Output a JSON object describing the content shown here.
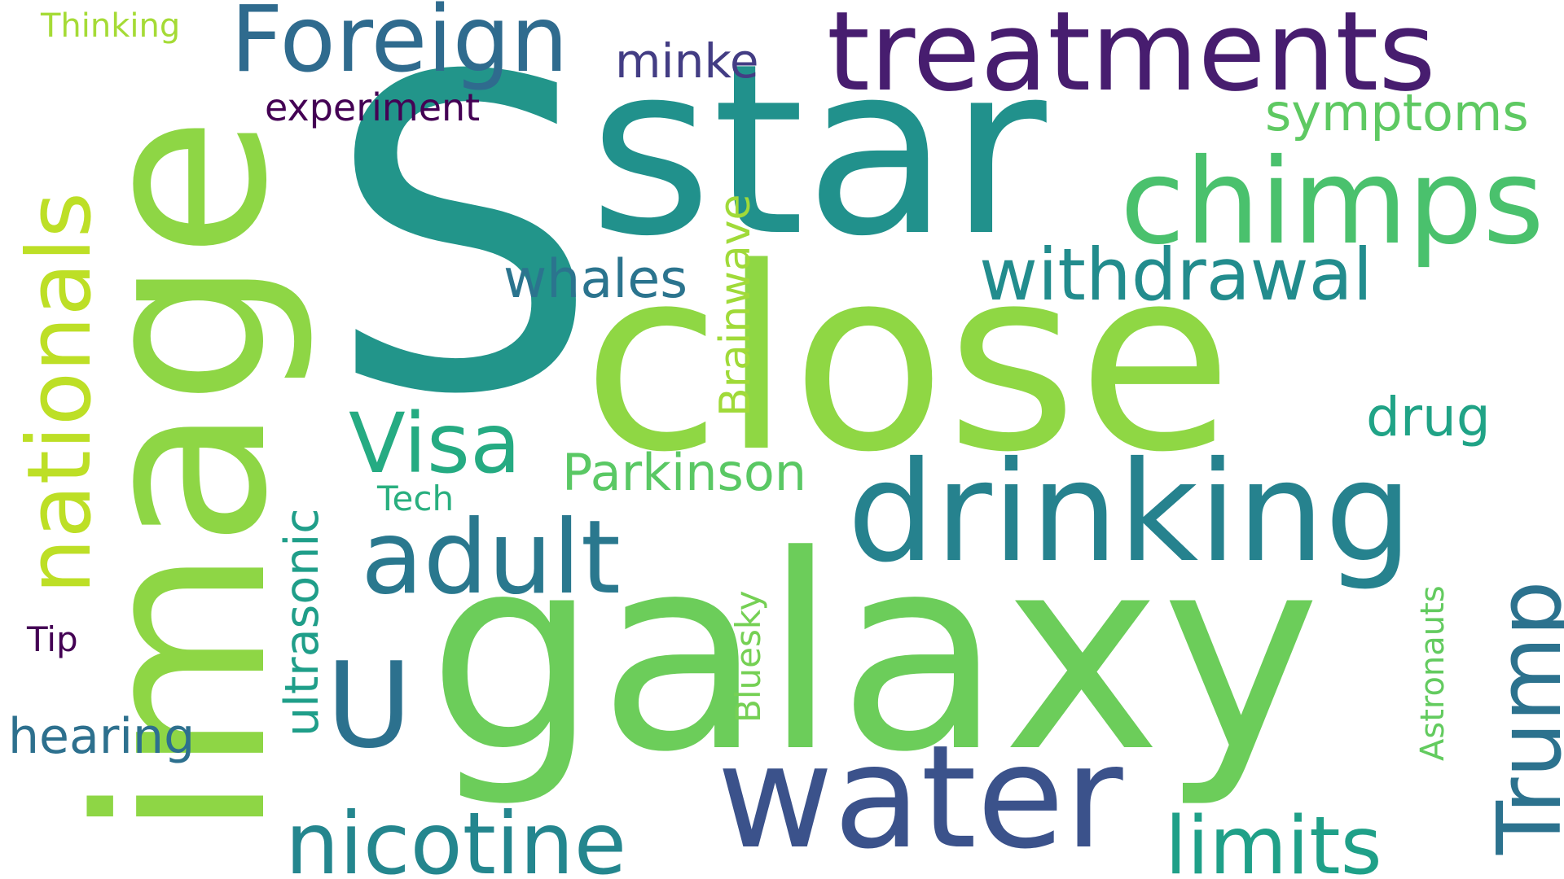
{
  "words": [
    {
      "text": "S",
      "color": "#22958a",
      "rotated": false
    },
    {
      "text": "star",
      "color": "#21918c",
      "rotated": false
    },
    {
      "text": "close",
      "color": "#8fd744",
      "rotated": false
    },
    {
      "text": "galaxy",
      "color": "#6ccd5a",
      "rotated": false
    },
    {
      "text": "image",
      "color": "#8ed645",
      "rotated": true
    },
    {
      "text": "treatments",
      "color": "#471d6f",
      "rotated": false
    },
    {
      "text": "drinking",
      "color": "#26828e",
      "rotated": false
    },
    {
      "text": "water",
      "color": "#3b528b",
      "rotated": false
    },
    {
      "text": "chimps",
      "color": "#4ac16d",
      "rotated": false
    },
    {
      "text": "Foreign",
      "color": "#2f6b8e",
      "rotated": false
    },
    {
      "text": "adult",
      "color": "#2a788e",
      "rotated": false
    },
    {
      "text": "nicotine",
      "color": "#24868e",
      "rotated": false
    },
    {
      "text": "U",
      "color": "#2c718e",
      "rotated": false
    },
    {
      "text": "nationals",
      "color": "#bddf26",
      "rotated": true
    },
    {
      "text": "Trump",
      "color": "#2c728e",
      "rotated": true
    },
    {
      "text": "withdrawal",
      "color": "#228c8d",
      "rotated": false
    },
    {
      "text": "limits",
      "color": "#1fa088",
      "rotated": false
    },
    {
      "text": "Visa",
      "color": "#25ab82",
      "rotated": false
    },
    {
      "text": "whales",
      "color": "#2b748e",
      "rotated": false
    },
    {
      "text": "Parkinson",
      "color": "#5ac864",
      "rotated": false
    },
    {
      "text": "symptoms",
      "color": "#5ec962",
      "rotated": false
    },
    {
      "text": "minke",
      "color": "#433d84",
      "rotated": false
    },
    {
      "text": "experiment",
      "color": "#440154",
      "rotated": false
    },
    {
      "text": "hearing",
      "color": "#2d708e",
      "rotated": false
    },
    {
      "text": "drug",
      "color": "#20a386",
      "rotated": false
    },
    {
      "text": "ultrasonic",
      "color": "#1f9e89",
      "rotated": true
    },
    {
      "text": "Brainwave",
      "color": "#a0da39",
      "rotated": true
    },
    {
      "text": "Tech",
      "color": "#29af7f",
      "rotated": false
    },
    {
      "text": "Thinking",
      "color": "#a5db36",
      "rotated": false
    },
    {
      "text": "Bluesky",
      "color": "#75d054",
      "rotated": true
    },
    {
      "text": "Astronauts",
      "color": "#63cb5f",
      "rotated": true
    },
    {
      "text": "Tip",
      "color": "#440154",
      "rotated": false
    }
  ]
}
